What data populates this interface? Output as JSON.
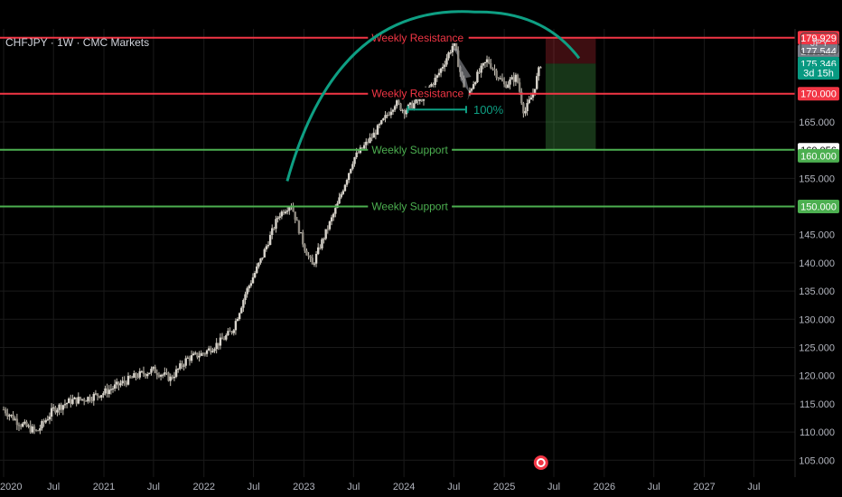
{
  "header": {
    "symbol": "CHFJPY · 1W · CMC Markets",
    "currency_button": "JPY"
  },
  "chart_data": {
    "type": "candlestick",
    "title": "CHFJPY · 1W · CMC Markets",
    "ylim": [
      102,
      181.5
    ],
    "y_ticks": [
      105,
      110,
      115,
      120,
      125,
      130,
      135,
      140,
      145,
      150,
      155,
      160,
      165
    ],
    "y_tick_labels": [
      "105.000",
      "110.000",
      "115.000",
      "120.000",
      "125.000",
      "130.000",
      "135.000",
      "140.000",
      "145.000",
      "150.000",
      "155.000",
      "160.000",
      "165.000"
    ],
    "x_range": [
      "2020-01-01",
      "2027-11-15"
    ],
    "x_ticks": [
      {
        "date": "2020-01-01",
        "label": "2020"
      },
      {
        "date": "2020-07-01",
        "label": "Jul"
      },
      {
        "date": "2021-01-01",
        "label": "2021"
      },
      {
        "date": "2021-07-01",
        "label": "Jul"
      },
      {
        "date": "2022-01-01",
        "label": "2022"
      },
      {
        "date": "2022-07-01",
        "label": "Jul"
      },
      {
        "date": "2023-01-01",
        "label": "2023"
      },
      {
        "date": "2023-07-01",
        "label": "Jul"
      },
      {
        "date": "2024-01-01",
        "label": "2024"
      },
      {
        "date": "2024-07-01",
        "label": "Jul"
      },
      {
        "date": "2025-01-01",
        "label": "2025"
      },
      {
        "date": "2025-07-01",
        "label": "Jul"
      },
      {
        "date": "2026-01-01",
        "label": "2026"
      },
      {
        "date": "2026-07-01",
        "label": "Jul"
      },
      {
        "date": "2027-01-01",
        "label": "2027"
      },
      {
        "date": "2027-07-01",
        "label": "Jul"
      }
    ],
    "price_path": [
      [
        "2020-01-01",
        114.0
      ],
      [
        "2020-03-01",
        111.5
      ],
      [
        "2020-05-01",
        110.0
      ],
      [
        "2020-07-01",
        114.0
      ],
      [
        "2020-09-01",
        115.5
      ],
      [
        "2020-11-01",
        116.0
      ],
      [
        "2021-01-01",
        117.0
      ],
      [
        "2021-03-01",
        118.5
      ],
      [
        "2021-05-01",
        120.0
      ],
      [
        "2021-07-01",
        121.0
      ],
      [
        "2021-09-01",
        119.5
      ],
      [
        "2021-11-01",
        123.0
      ],
      [
        "2022-01-01",
        124.0
      ],
      [
        "2022-03-01",
        126.0
      ],
      [
        "2022-04-15",
        128.0
      ],
      [
        "2022-06-01",
        134.5
      ],
      [
        "2022-08-01",
        141.0
      ],
      [
        "2022-10-01",
        148.5
      ],
      [
        "2022-11-15",
        150.5
      ],
      [
        "2023-01-01",
        143.0
      ],
      [
        "2023-02-01",
        139.5
      ],
      [
        "2023-03-01",
        143.0
      ],
      [
        "2023-05-01",
        150.0
      ],
      [
        "2023-07-01",
        158.5
      ],
      [
        "2023-09-01",
        162.0
      ],
      [
        "2023-10-15",
        165.0
      ],
      [
        "2023-12-01",
        168.5
      ],
      [
        "2024-01-01",
        167.0
      ],
      [
        "2024-03-01",
        169.0
      ],
      [
        "2024-05-01",
        173.0
      ],
      [
        "2024-07-01",
        179.0
      ],
      [
        "2024-08-15",
        169.0
      ],
      [
        "2024-09-15",
        172.5
      ],
      [
        "2024-11-01",
        176.0
      ],
      [
        "2025-01-01",
        171.5
      ],
      [
        "2025-02-15",
        173.0
      ],
      [
        "2025-03-15",
        166.5
      ],
      [
        "2025-04-15",
        170.0
      ],
      [
        "2025-05-15",
        175.5
      ]
    ],
    "horizontal_lines": [
      {
        "label": "Weekly Resistance",
        "value": 179.929,
        "color": "#f23645"
      },
      {
        "label": "Weekly Resistance",
        "value": 170.0,
        "color": "#f23645"
      },
      {
        "label": "Weekly Support",
        "value": 160.056,
        "color": "#4caf50"
      },
      {
        "label": "Weekly Support",
        "value": 150.0,
        "color": "#4caf50"
      }
    ],
    "price_tags": [
      {
        "label": "179.929",
        "value": 179.929,
        "color": "#f23645"
      },
      {
        "label": "177.544",
        "value": 177.544,
        "color": "#787b86"
      },
      {
        "label": "175.346",
        "value": 175.346,
        "color": "#089981"
      },
      {
        "label": "3d 15h",
        "value": 173.7,
        "color": "#089981"
      },
      {
        "label": "170.000",
        "value": 170.0,
        "color": "#f23645"
      },
      {
        "label": "160.056",
        "value": 160.056,
        "color": "#ffffff"
      },
      {
        "label": "160.000",
        "value": 159.0,
        "color": "#4caf50"
      },
      {
        "label": "150.000",
        "value": 150.0,
        "color": "#4caf50"
      }
    ],
    "measure_label": "100%",
    "measure_range": {
      "start": "2024-01-15",
      "end": "2024-08-15",
      "value": 167.2
    },
    "rounding_top_arc": {
      "start": [
        "2022-11-01",
        154.5
      ],
      "peak": [
        "2024-09-15",
        184.5
      ],
      "end": [
        "2025-10-01",
        176.3
      ]
    },
    "short_position": {
      "start": "2025-06-01",
      "end": "2025-12-01",
      "stop": 179.929,
      "entry": 175.346,
      "target": 160.056
    }
  },
  "colors": {
    "background": "#000000",
    "grid": "#1a1a1a",
    "resistance": "#f23645",
    "support": "#4caf50",
    "arc": "#0e9f83",
    "candle": "#c8c3b8",
    "profit_zone": "rgba(76,175,80,0.30)",
    "risk_zone": "rgba(242,54,69,0.25)"
  },
  "icons": {
    "event_marker": "target-icon"
  }
}
